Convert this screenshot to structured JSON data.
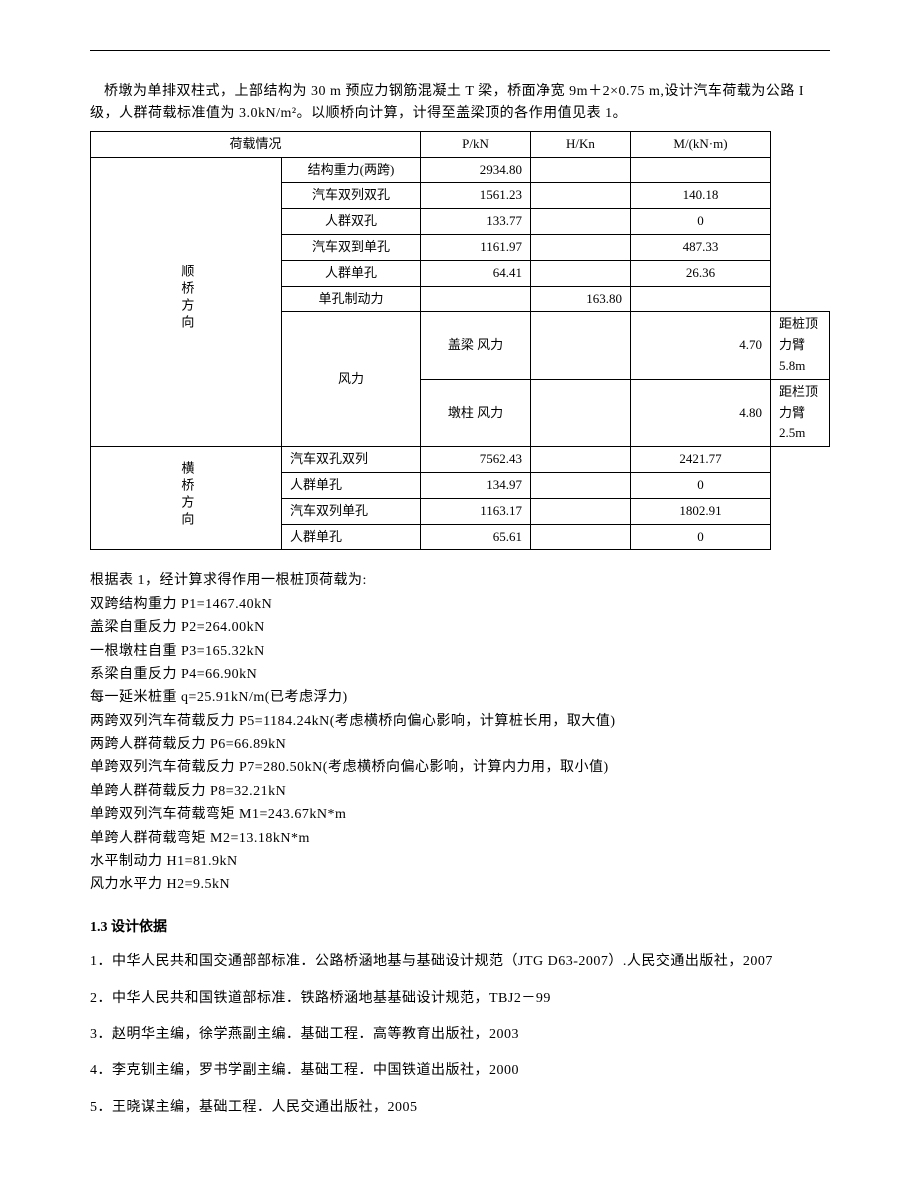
{
  "intro": "桥墩为单排双柱式，上部结构为 30 m 预应力钢筋混凝土 T 梁，桥面净宽 9m＋2×0.75 m,设计汽车荷载为公路 I 级，人群荷载标准值为 3.0kN/m²。以顺桥向计算，计得至盖梁顶的各作用值见表 1。",
  "table": {
    "headers": {
      "load": "荷载情况",
      "p": "P/kN",
      "h": "H/Kn",
      "m": "M/(kN·m)"
    },
    "dir1": "顺桥方向",
    "rows1": [
      {
        "name": "结构重力(两跨)",
        "p": "2934.80",
        "h": "",
        "m": ""
      },
      {
        "name": "汽车双列双孔",
        "p": "1561.23",
        "h": "",
        "m": "140.18"
      },
      {
        "name": "人群双孔",
        "p": "133.77",
        "h": "",
        "m": "0"
      },
      {
        "name": "汽车双到单孔",
        "p": "1161.97",
        "h": "",
        "m": "487.33"
      },
      {
        "name": "人群单孔",
        "p": "64.41",
        "h": "",
        "m": "26.36"
      },
      {
        "name": "单孔制动力",
        "p": "",
        "h": "163.80",
        "m": ""
      }
    ],
    "wind_label": "风力",
    "wind_rows": [
      {
        "name": "盖梁        风力",
        "p": "",
        "h": "4.70",
        "m": "距桩顶力臂   5.8m"
      },
      {
        "name": "墩柱        风力",
        "p": "",
        "h": "4.80",
        "m": "距栏顶力臂   2.5m"
      }
    ],
    "dir2": "横桥方向",
    "rows2": [
      {
        "name": "汽车双孔双列",
        "p": "7562.43",
        "h": "",
        "m": "2421.77"
      },
      {
        "name": "人群单孔",
        "p": "134.97",
        "h": "",
        "m": "0"
      },
      {
        "name": "汽车双列单孔",
        "p": "1163.17",
        "h": "",
        "m": "1802.91"
      },
      {
        "name": "人群单孔",
        "p": "65.61",
        "h": "",
        "m": "0"
      }
    ]
  },
  "calc_intro": "根据表 1，经计算求得作用一根桩顶荷载为:",
  "calc_lines": [
    "双跨结构重力 P1=1467.40kN",
    "盖梁自重反力 P2=264.00kN",
    "一根墩柱自重 P3=165.32kN",
    "系梁自重反力 P4=66.90kN",
    "每一延米桩重 q=25.91kN/m(已考虑浮力)",
    "两跨双列汽车荷载反力 P5=1184.24kN(考虑横桥向偏心影响，计算桩长用，取大值)",
    "两跨人群荷载反力 P6=66.89kN",
    "单跨双列汽车荷载反力 P7=280.50kN(考虑横桥向偏心影响，计算内力用，取小值)",
    "单跨人群荷载反力 P8=32.21kN",
    "单跨双列汽车荷载弯矩 M1=243.67kN*m",
    "单跨人群荷载弯矩 M2=13.18kN*m",
    "水平制动力 H1=81.9kN",
    "风力水平力 H2=9.5kN"
  ],
  "section_title": "1.3 设计依据",
  "references": [
    "1．中华人民共和国交通部部标准．公路桥涵地基与基础设计规范（JTG D63-2007）.人民交通出版社，2007",
    "2．中华人民共和国铁道部标准．铁路桥涵地基基础设计规范，TBJ2－99",
    "3．赵明华主编，徐学燕副主编．基础工程．高等教育出版社，2003",
    "4．李克钏主编，罗书学副主编．基础工程．中国铁道出版社，2000",
    "5．王晓谋主编，基础工程．人民交通出版社，2005"
  ]
}
